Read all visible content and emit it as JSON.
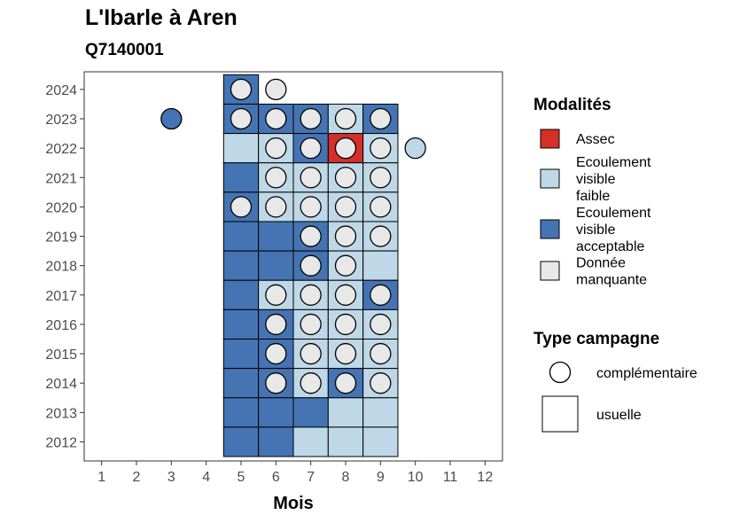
{
  "chart_data": {
    "type": "heatmap",
    "title": "L'Ibarle à Aren",
    "subtitle": "Q7140001",
    "xlabel": "Mois",
    "ylabel": "",
    "x_ticks": [
      "1",
      "2",
      "3",
      "4",
      "5",
      "6",
      "7",
      "8",
      "9",
      "10",
      "11",
      "12"
    ],
    "y_ticks": [
      "2012",
      "2013",
      "2014",
      "2015",
      "2016",
      "2017",
      "2018",
      "2019",
      "2020",
      "2021",
      "2022",
      "2023",
      "2024"
    ],
    "xlim": [
      0.5,
      12.5
    ],
    "ylim": [
      2011.35,
      2024.6
    ],
    "grid": false,
    "legend_placement": "right",
    "modalities": [
      {
        "key": "assec",
        "label": [
          "Assec"
        ],
        "color": "#d62f27"
      },
      {
        "key": "faible",
        "label": [
          "Ecoulement",
          "visible",
          "faible"
        ],
        "color": "#bed8e8"
      },
      {
        "key": "acceptable",
        "label": [
          "Ecoulement",
          "visible",
          "acceptable"
        ],
        "color": "#4574b4"
      },
      {
        "key": "manquante",
        "label": [
          "Donnée",
          "manquante"
        ],
        "color": "#e8e8e8"
      }
    ],
    "legend_modalities_title": "Modalités",
    "legend_type_title": "Type campagne",
    "campaign_types": [
      {
        "key": "complementaire",
        "label": "complémentaire",
        "shape": "circle"
      },
      {
        "key": "usuelle",
        "label": "usuelle",
        "shape": "square"
      }
    ],
    "usuelle": [
      {
        "year": 2024,
        "month": 5,
        "value": "acceptable"
      },
      {
        "year": 2023,
        "month": 5,
        "value": "acceptable"
      },
      {
        "year": 2023,
        "month": 6,
        "value": "acceptable"
      },
      {
        "year": 2023,
        "month": 7,
        "value": "acceptable"
      },
      {
        "year": 2023,
        "month": 8,
        "value": "faible"
      },
      {
        "year": 2023,
        "month": 9,
        "value": "acceptable"
      },
      {
        "year": 2022,
        "month": 5,
        "value": "faible"
      },
      {
        "year": 2022,
        "month": 6,
        "value": "faible"
      },
      {
        "year": 2022,
        "month": 7,
        "value": "acceptable"
      },
      {
        "year": 2022,
        "month": 8,
        "value": "assec"
      },
      {
        "year": 2022,
        "month": 9,
        "value": "faible"
      },
      {
        "year": 2021,
        "month": 5,
        "value": "acceptable"
      },
      {
        "year": 2021,
        "month": 6,
        "value": "faible"
      },
      {
        "year": 2021,
        "month": 7,
        "value": "faible"
      },
      {
        "year": 2021,
        "month": 8,
        "value": "faible"
      },
      {
        "year": 2021,
        "month": 9,
        "value": "faible"
      },
      {
        "year": 2020,
        "month": 5,
        "value": "acceptable"
      },
      {
        "year": 2020,
        "month": 6,
        "value": "faible"
      },
      {
        "year": 2020,
        "month": 7,
        "value": "faible"
      },
      {
        "year": 2020,
        "month": 8,
        "value": "faible"
      },
      {
        "year": 2020,
        "month": 9,
        "value": "faible"
      },
      {
        "year": 2019,
        "month": 5,
        "value": "acceptable"
      },
      {
        "year": 2019,
        "month": 6,
        "value": "acceptable"
      },
      {
        "year": 2019,
        "month": 7,
        "value": "acceptable"
      },
      {
        "year": 2019,
        "month": 8,
        "value": "faible"
      },
      {
        "year": 2019,
        "month": 9,
        "value": "faible"
      },
      {
        "year": 2018,
        "month": 5,
        "value": "acceptable"
      },
      {
        "year": 2018,
        "month": 6,
        "value": "acceptable"
      },
      {
        "year": 2018,
        "month": 7,
        "value": "acceptable"
      },
      {
        "year": 2018,
        "month": 8,
        "value": "faible"
      },
      {
        "year": 2018,
        "month": 9,
        "value": "faible"
      },
      {
        "year": 2017,
        "month": 5,
        "value": "acceptable"
      },
      {
        "year": 2017,
        "month": 6,
        "value": "faible"
      },
      {
        "year": 2017,
        "month": 7,
        "value": "faible"
      },
      {
        "year": 2017,
        "month": 8,
        "value": "faible"
      },
      {
        "year": 2017,
        "month": 9,
        "value": "acceptable"
      },
      {
        "year": 2016,
        "month": 5,
        "value": "acceptable"
      },
      {
        "year": 2016,
        "month": 6,
        "value": "acceptable"
      },
      {
        "year": 2016,
        "month": 7,
        "value": "faible"
      },
      {
        "year": 2016,
        "month": 8,
        "value": "faible"
      },
      {
        "year": 2016,
        "month": 9,
        "value": "faible"
      },
      {
        "year": 2015,
        "month": 5,
        "value": "acceptable"
      },
      {
        "year": 2015,
        "month": 6,
        "value": "acceptable"
      },
      {
        "year": 2015,
        "month": 7,
        "value": "faible"
      },
      {
        "year": 2015,
        "month": 8,
        "value": "faible"
      },
      {
        "year": 2015,
        "month": 9,
        "value": "faible"
      },
      {
        "year": 2014,
        "month": 5,
        "value": "acceptable"
      },
      {
        "year": 2014,
        "month": 6,
        "value": "acceptable"
      },
      {
        "year": 2014,
        "month": 7,
        "value": "faible"
      },
      {
        "year": 2014,
        "month": 8,
        "value": "acceptable"
      },
      {
        "year": 2014,
        "month": 9,
        "value": "faible"
      },
      {
        "year": 2013,
        "month": 5,
        "value": "acceptable"
      },
      {
        "year": 2013,
        "month": 6,
        "value": "acceptable"
      },
      {
        "year": 2013,
        "month": 7,
        "value": "acceptable"
      },
      {
        "year": 2013,
        "month": 8,
        "value": "faible"
      },
      {
        "year": 2013,
        "month": 9,
        "value": "faible"
      },
      {
        "year": 2012,
        "month": 5,
        "value": "acceptable"
      },
      {
        "year": 2012,
        "month": 6,
        "value": "acceptable"
      },
      {
        "year": 2012,
        "month": 7,
        "value": "faible"
      },
      {
        "year": 2012,
        "month": 8,
        "value": "faible"
      },
      {
        "year": 2012,
        "month": 9,
        "value": "faible"
      }
    ],
    "complementaire": [
      {
        "year": 2024,
        "month": 5,
        "value": "manquante"
      },
      {
        "year": 2024,
        "month": 6,
        "value": "manquante"
      },
      {
        "year": 2023,
        "month": 3,
        "value": "acceptable"
      },
      {
        "year": 2023,
        "month": 5,
        "value": "manquante"
      },
      {
        "year": 2023,
        "month": 6,
        "value": "manquante"
      },
      {
        "year": 2023,
        "month": 7,
        "value": "manquante"
      },
      {
        "year": 2023,
        "month": 8,
        "value": "manquante"
      },
      {
        "year": 2023,
        "month": 9,
        "value": "manquante"
      },
      {
        "year": 2022,
        "month": 6,
        "value": "manquante"
      },
      {
        "year": 2022,
        "month": 7,
        "value": "manquante"
      },
      {
        "year": 2022,
        "month": 8,
        "value": "manquante"
      },
      {
        "year": 2022,
        "month": 9,
        "value": "manquante"
      },
      {
        "year": 2022,
        "month": 10,
        "value": "faible"
      },
      {
        "year": 2021,
        "month": 6,
        "value": "manquante"
      },
      {
        "year": 2021,
        "month": 7,
        "value": "manquante"
      },
      {
        "year": 2021,
        "month": 8,
        "value": "manquante"
      },
      {
        "year": 2021,
        "month": 9,
        "value": "manquante"
      },
      {
        "year": 2020,
        "month": 5,
        "value": "manquante"
      },
      {
        "year": 2020,
        "month": 6,
        "value": "manquante"
      },
      {
        "year": 2020,
        "month": 7,
        "value": "manquante"
      },
      {
        "year": 2020,
        "month": 8,
        "value": "manquante"
      },
      {
        "year": 2020,
        "month": 9,
        "value": "manquante"
      },
      {
        "year": 2019,
        "month": 7,
        "value": "manquante"
      },
      {
        "year": 2019,
        "month": 8,
        "value": "manquante"
      },
      {
        "year": 2019,
        "month": 9,
        "value": "manquante"
      },
      {
        "year": 2018,
        "month": 7,
        "value": "manquante"
      },
      {
        "year": 2018,
        "month": 8,
        "value": "manquante"
      },
      {
        "year": 2017,
        "month": 6,
        "value": "manquante"
      },
      {
        "year": 2017,
        "month": 7,
        "value": "manquante"
      },
      {
        "year": 2017,
        "month": 8,
        "value": "manquante"
      },
      {
        "year": 2017,
        "month": 9,
        "value": "manquante"
      },
      {
        "year": 2016,
        "month": 6,
        "value": "manquante"
      },
      {
        "year": 2016,
        "month": 7,
        "value": "manquante"
      },
      {
        "year": 2016,
        "month": 8,
        "value": "manquante"
      },
      {
        "year": 2016,
        "month": 9,
        "value": "manquante"
      },
      {
        "year": 2015,
        "month": 6,
        "value": "manquante"
      },
      {
        "year": 2015,
        "month": 7,
        "value": "manquante"
      },
      {
        "year": 2015,
        "month": 8,
        "value": "manquante"
      },
      {
        "year": 2015,
        "month": 9,
        "value": "manquante"
      },
      {
        "year": 2014,
        "month": 6,
        "value": "manquante"
      },
      {
        "year": 2014,
        "month": 7,
        "value": "manquante"
      },
      {
        "year": 2014,
        "month": 8,
        "value": "manquante"
      },
      {
        "year": 2014,
        "month": 9,
        "value": "manquante"
      }
    ]
  }
}
